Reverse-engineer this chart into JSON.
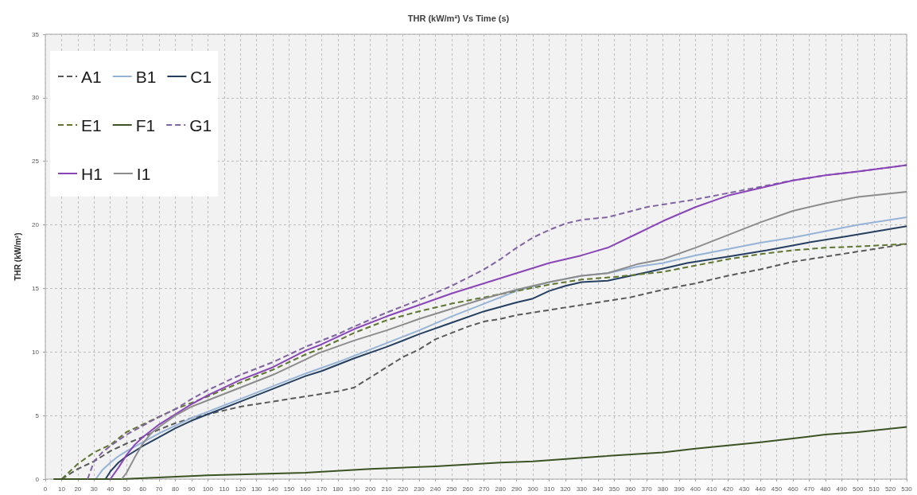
{
  "chart_data": {
    "type": "line",
    "title": "THR (kW/m²) Vs Time (s)",
    "ylabel": "THR (kW/m²)",
    "xlim": [
      0,
      530
    ],
    "xticks": [
      0,
      10,
      20,
      30,
      40,
      50,
      60,
      70,
      80,
      90,
      100,
      110,
      120,
      130,
      140,
      150,
      160,
      170,
      180,
      190,
      200,
      210,
      220,
      230,
      240,
      250,
      260,
      270,
      280,
      290,
      300,
      310,
      320,
      330,
      340,
      350,
      360,
      370,
      380,
      390,
      400,
      410,
      420,
      430,
      440,
      450,
      460,
      470,
      480,
      490,
      500,
      510,
      520,
      530
    ],
    "ylim": [
      0,
      35
    ],
    "yticks": [
      0,
      5,
      10,
      15,
      20,
      25,
      30,
      35
    ],
    "grid": true,
    "legend": "top left",
    "marker": "none",
    "series": [
      {
        "name": "A1",
        "color": "#595959",
        "line_style": "dashed",
        "x": [
          10,
          20,
          30,
          40,
          50,
          60,
          70,
          80,
          90,
          100,
          120,
          140,
          160,
          170,
          180,
          190,
          200,
          210,
          220,
          230,
          240,
          250,
          260,
          270,
          280,
          290,
          300,
          320,
          340,
          360,
          380,
          400,
          420,
          440,
          460,
          480,
          500,
          520,
          530
        ],
        "values": [
          0,
          0.8,
          1.4,
          2.2,
          2.8,
          3.3,
          3.9,
          4.4,
          4.8,
          5.1,
          5.7,
          6.1,
          6.5,
          6.7,
          6.9,
          7.2,
          8.0,
          8.8,
          9.6,
          10.2,
          11.0,
          11.5,
          12.0,
          12.4,
          12.6,
          12.9,
          13.1,
          13.5,
          13.9,
          14.3,
          14.9,
          15.4,
          16.0,
          16.5,
          17.1,
          17.5,
          17.9,
          18.3,
          18.5
        ]
      },
      {
        "name": "B1",
        "color": "#95b3d7",
        "line_style": "solid",
        "x": [
          31,
          35,
          40,
          45,
          50,
          60,
          70,
          80,
          90,
          100,
          120,
          140,
          160,
          180,
          190,
          210,
          230,
          250,
          270,
          290,
          310,
          330,
          346,
          364,
          380,
          400,
          420,
          440,
          460,
          480,
          500,
          530
        ],
        "values": [
          0,
          0.7,
          1.3,
          1.8,
          2.2,
          2.9,
          3.6,
          4.2,
          4.8,
          5.3,
          6.3,
          7.3,
          8.3,
          9.2,
          9.7,
          10.7,
          11.7,
          12.8,
          13.8,
          14.8,
          15.5,
          16.0,
          16.2,
          16.7,
          17.0,
          17.6,
          18.1,
          18.6,
          19.0,
          19.5,
          20.0,
          20.6
        ]
      },
      {
        "name": "C1",
        "color": "#243f60",
        "line_style": "solid",
        "x": [
          37,
          40,
          45,
          50,
          60,
          70,
          80,
          90,
          100,
          120,
          140,
          160,
          170,
          190,
          210,
          230,
          250,
          270,
          290,
          300,
          310,
          320,
          330,
          346,
          371,
          395,
          420,
          444,
          469,
          493,
          530
        ],
        "values": [
          0,
          0.6,
          1.3,
          1.8,
          2.6,
          3.3,
          4.0,
          4.6,
          5.1,
          6.1,
          7.1,
          8.1,
          8.5,
          9.5,
          10.4,
          11.4,
          12.3,
          13.2,
          13.9,
          14.2,
          14.8,
          15.2,
          15.5,
          15.6,
          16.3,
          17.0,
          17.5,
          18.0,
          18.6,
          19.1,
          19.9
        ]
      },
      {
        "name": "E1",
        "color": "#5f7530",
        "line_style": "dashed",
        "x": [
          10,
          20,
          30,
          40,
          50,
          60,
          70,
          80,
          90,
          100,
          120,
          140,
          160,
          170,
          190,
          210,
          230,
          250,
          270,
          290,
          310,
          330,
          350,
          380,
          400,
          420,
          440,
          460,
          480,
          500,
          530
        ],
        "values": [
          0,
          1.2,
          2.1,
          2.7,
          3.7,
          4.3,
          4.9,
          5.5,
          6.0,
          6.5,
          7.6,
          8.6,
          9.8,
          10.3,
          11.5,
          12.5,
          13.2,
          13.8,
          14.3,
          14.8,
          15.3,
          15.7,
          15.9,
          16.3,
          16.8,
          17.3,
          17.7,
          18.0,
          18.2,
          18.3,
          18.5
        ]
      },
      {
        "name": "F1",
        "color": "#3b5323",
        "line_style": "solid",
        "x": [
          5,
          47,
          100,
          160,
          200,
          240,
          280,
          300,
          344,
          380,
          400,
          440,
          460,
          480,
          500,
          530
        ],
        "values": [
          0,
          0,
          0.3,
          0.5,
          0.8,
          1.0,
          1.3,
          1.4,
          1.8,
          2.1,
          2.4,
          2.9,
          3.2,
          3.5,
          3.7,
          4.1
        ]
      },
      {
        "name": "G1",
        "color": "#8064a2",
        "line_style": "dashed",
        "x": [
          26,
          30,
          35,
          40,
          50,
          60,
          70,
          80,
          90,
          100,
          120,
          140,
          160,
          170,
          180,
          190,
          210,
          230,
          250,
          270,
          280,
          290,
          300,
          310,
          320,
          330,
          346,
          370,
          400,
          420,
          440,
          460,
          480,
          500,
          530
        ],
        "values": [
          0,
          1.4,
          2.1,
          2.6,
          3.5,
          4.2,
          4.9,
          5.5,
          6.3,
          7.0,
          8.2,
          9.2,
          10.4,
          10.9,
          11.4,
          12.0,
          13.1,
          14.1,
          15.2,
          16.5,
          17.3,
          18.2,
          19.0,
          19.6,
          20.1,
          20.4,
          20.6,
          21.4,
          22.0,
          22.5,
          23.0,
          23.5,
          23.9,
          24.2,
          24.7
        ]
      },
      {
        "name": "H1",
        "color": "#8a45b8",
        "line_style": "solid",
        "x": [
          40,
          45,
          50,
          55,
          60,
          70,
          80,
          90,
          100,
          120,
          140,
          160,
          170,
          190,
          210,
          230,
          250,
          270,
          290,
          310,
          330,
          346,
          364,
          380,
          400,
          420,
          440,
          460,
          480,
          500,
          530
        ],
        "values": [
          0,
          0.9,
          1.9,
          2.7,
          3.3,
          4.3,
          5.1,
          5.9,
          6.6,
          7.8,
          8.8,
          10.1,
          10.6,
          11.8,
          12.8,
          13.7,
          14.6,
          15.4,
          16.2,
          17.0,
          17.6,
          18.2,
          19.3,
          20.3,
          21.4,
          22.3,
          22.9,
          23.5,
          23.9,
          24.2,
          24.7
        ]
      },
      {
        "name": "I1",
        "color": "#8c8c8c",
        "line_style": "solid",
        "x": [
          47,
          50,
          55,
          60,
          65,
          70,
          80,
          90,
          100,
          120,
          140,
          160,
          168,
          190,
          210,
          230,
          250,
          270,
          290,
          310,
          330,
          346,
          364,
          380,
          400,
          420,
          440,
          460,
          480,
          500,
          530
        ],
        "values": [
          0,
          0.5,
          1.7,
          2.8,
          3.6,
          4.1,
          5.0,
          5.7,
          6.2,
          7.2,
          8.2,
          9.4,
          9.9,
          10.9,
          11.7,
          12.6,
          13.4,
          14.2,
          14.9,
          15.5,
          16.0,
          16.2,
          16.9,
          17.3,
          18.2,
          19.2,
          20.2,
          21.1,
          21.7,
          22.2,
          22.6
        ]
      }
    ]
  }
}
